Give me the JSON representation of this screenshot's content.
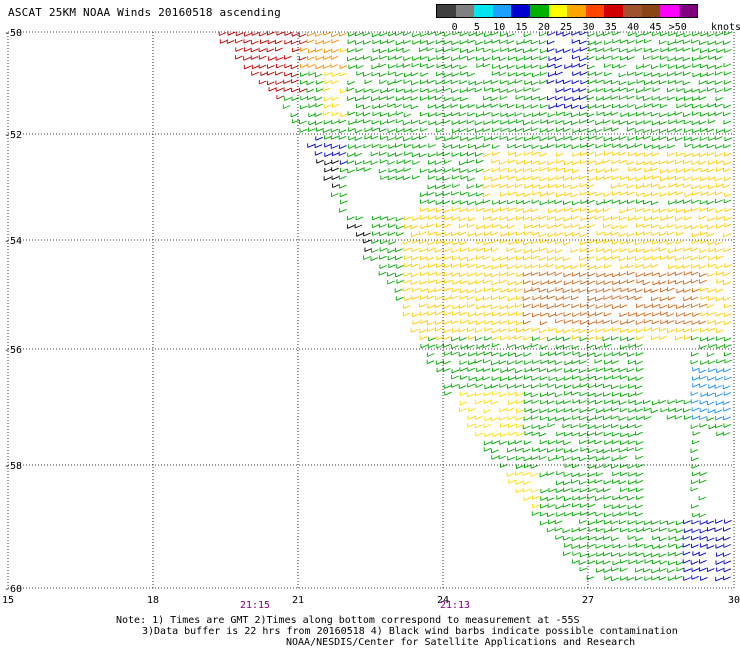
{
  "title": "ASCAT 25KM NOAA Winds 20160518 ascending",
  "legend": {
    "labels": [
      "0",
      "5",
      "10",
      "15",
      "20",
      "25",
      "30",
      "35",
      "40",
      "45",
      ">50"
    ],
    "unit": "knots",
    "colors": [
      "#404040",
      "#808080",
      "#00e5ee",
      "#1ea0ff",
      "#0000d0",
      "#00b000",
      "#ffff00",
      "#ffa500",
      "#ff4500",
      "#d00000",
      "#a0522d",
      "#8b4513",
      "#ff00ff",
      "#800080"
    ]
  },
  "map": {
    "lat_labels": [
      "-50",
      "-52",
      "-54",
      "-56",
      "-58",
      "-60"
    ],
    "lon_labels": [
      "15",
      "18",
      "21",
      "24",
      "27",
      "30"
    ],
    "time_labels": [
      "21:15",
      "21:13"
    ]
  },
  "notes": {
    "line1": "Note: 1) Times are GMT 2)Times along bottom correspond to measurement at -55S",
    "line2": "3)Data buffer is 22 hrs from 20160518 4) Black wind barbs indicate possible contamination",
    "line3": "NOAA/NESDIS/Center for Satellite Applications and Research"
  }
}
